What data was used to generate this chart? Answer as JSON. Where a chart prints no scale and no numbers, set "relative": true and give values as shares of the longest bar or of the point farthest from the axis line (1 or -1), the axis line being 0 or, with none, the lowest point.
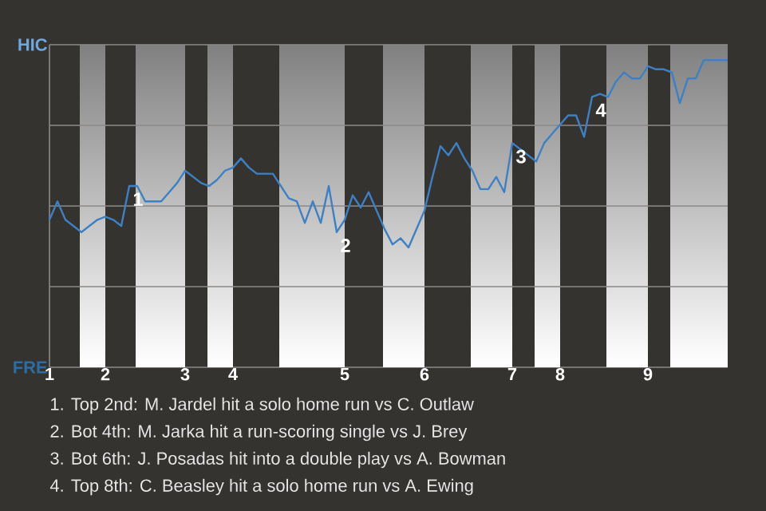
{
  "chart_data": {
    "type": "line",
    "relative": true,
    "categories": [
      "1",
      null,
      null,
      null,
      null,
      null,
      null,
      "2",
      null,
      null,
      null,
      null,
      null,
      null,
      null,
      null,
      null,
      "3",
      null,
      null,
      null,
      null,
      null,
      "4",
      null,
      null,
      null,
      null,
      null,
      null,
      null,
      null,
      null,
      null,
      null,
      null,
      null,
      "5",
      null,
      null,
      null,
      null,
      null,
      null,
      null,
      null,
      null,
      "6",
      null,
      null,
      null,
      null,
      null,
      null,
      null,
      null,
      null,
      null,
      "7",
      null,
      null,
      null,
      null,
      null,
      "8",
      null,
      null,
      null,
      null,
      null,
      null,
      null,
      null,
      null,
      null,
      "9",
      null,
      null,
      null,
      null,
      null,
      null,
      null,
      null,
      null,
      null
    ],
    "series": [
      {
        "color": "#3d80c4",
        "values": [
          0.48,
          0.54,
          0.48,
          0.46,
          0.44,
          0.46,
          0.48,
          0.49,
          0.48,
          0.46,
          0.59,
          0.59,
          0.54,
          0.54,
          0.54,
          0.57,
          0.6,
          0.64,
          0.62,
          0.6,
          0.59,
          0.61,
          0.64,
          0.65,
          0.68,
          0.65,
          0.63,
          0.63,
          0.63,
          0.59,
          0.55,
          0.54,
          0.47,
          0.54,
          0.47,
          0.59,
          0.44,
          0.48,
          0.56,
          0.52,
          0.57,
          0.51,
          0.45,
          0.4,
          0.42,
          0.39,
          0.45,
          0.51,
          0.62,
          0.72,
          0.69,
          0.73,
          0.68,
          0.64,
          0.58,
          0.58,
          0.62,
          0.57,
          0.73,
          0.71,
          0.69,
          0.67,
          0.73,
          0.76,
          0.79,
          0.82,
          0.82,
          0.75,
          0.88,
          0.89,
          0.88,
          0.93,
          0.96,
          0.94,
          0.94,
          0.98,
          0.97,
          0.97,
          0.96,
          0.86,
          0.94,
          0.94,
          1,
          1,
          1,
          1
        ]
      }
    ],
    "grid": "y",
    "legend": false,
    "marker": "none",
    "line_style": "solid",
    "annotations": [
      {
        "text": "1",
        "y": 0.59
      },
      {
        "text": "2",
        "y": 0.44
      },
      {
        "text": "3",
        "y": 0.73
      },
      {
        "text": "4",
        "y": 0.88
      },
      "HIC",
      "FRE",
      "1. Top 2nd: M. Jardel hit a solo home run vs C. Outlaw",
      "2. Bot 4th: M. Jarka hit a run-scoring single vs J. Brey",
      "3. Bot 6th: J. Posadas hit into a double play vs A. Bowman",
      "4. Top 8th: C. Beasley hit a solo home run vs A. Ewing"
    ]
  }
}
